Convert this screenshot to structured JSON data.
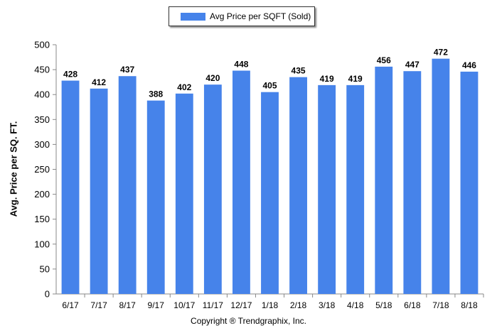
{
  "legend": {
    "label": "Avg Price per SQFT (Sold)",
    "color": "#4683ea"
  },
  "footer": "Copyright ® Trendgraphix, Inc.",
  "chart_data": {
    "type": "bar",
    "title": "",
    "xlabel": "",
    "ylabel": "Avg. Price per SQ. FT.",
    "ylim": [
      0,
      500
    ],
    "yticks": [
      0,
      50,
      100,
      150,
      200,
      250,
      300,
      350,
      400,
      450,
      500
    ],
    "grid": false,
    "legend_position": "top-center",
    "categories": [
      "6/17",
      "7/17",
      "8/17",
      "9/17",
      "10/17",
      "11/17",
      "12/17",
      "1/18",
      "2/18",
      "3/18",
      "4/18",
      "5/18",
      "6/18",
      "7/18",
      "8/18"
    ],
    "series": [
      {
        "name": "Avg Price per SQFT (Sold)",
        "color": "#4683ea",
        "values": [
          428,
          412,
          437,
          388,
          402,
          420,
          448,
          405,
          435,
          419,
          419,
          456,
          447,
          472,
          446
        ],
        "data_labels": [
          "428",
          "412",
          "437",
          "388",
          "402",
          "420",
          "448",
          "405",
          "435",
          "419",
          "419",
          "456",
          "447",
          "472",
          "446"
        ]
      }
    ]
  }
}
